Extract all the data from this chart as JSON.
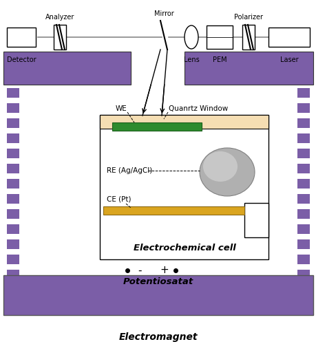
{
  "bg_color": "#ffffff",
  "purple_color": "#7B5EA7",
  "purple_edge": "#5a3f80",
  "green_color": "#2E8B2E",
  "gold_color": "#DAA520",
  "quartz_color": "#F5DEB3",
  "gray_ellipse_color": "#A8A8A8",
  "title_electrochem": "Electrochemical cell",
  "title_potentiostat": "Potentiosatat",
  "title_electromagnet": "Electromagnet",
  "label_WE": "WE",
  "label_RE": "RE (Ag/AgCl)",
  "label_CE": "CE (Pt)",
  "label_quartz": "Quanrtz Window",
  "label_analyzer": "Analyzer",
  "label_detector": "Detector",
  "label_mirror": "Mirror",
  "label_lens": "Lens",
  "label_PEM": "PEM",
  "label_polarizer": "Polarizer",
  "label_laser": "Laser"
}
